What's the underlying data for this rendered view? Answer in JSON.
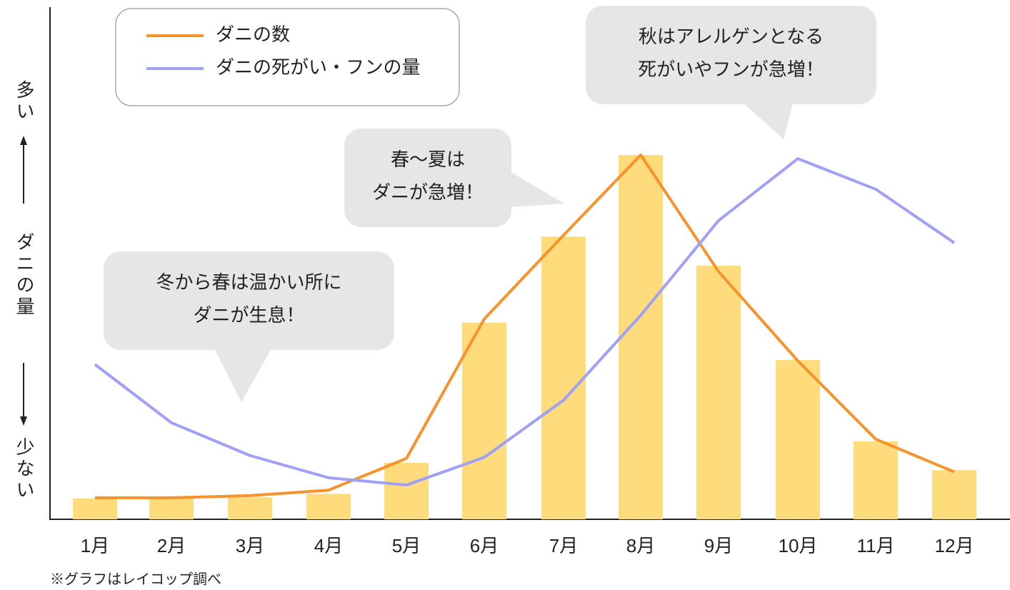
{
  "chart_data": {
    "type": "bar_line",
    "ylabel": {
      "top": "多い",
      "middle": "ダニの量",
      "bottom": "少ない"
    },
    "categories": [
      "1月",
      "2月",
      "3月",
      "4月",
      "5月",
      "6月",
      "7月",
      "8月",
      "9月",
      "10月",
      "11月",
      "12月"
    ],
    "ylim": [
      0,
      100
    ],
    "bar_color": "#fedb7b",
    "series": [
      {
        "name": "ダニの数",
        "color": "#f7932c",
        "values": [
          5.9,
          5.9,
          6.5,
          8,
          16.7,
          55,
          78,
          100,
          68,
          43.5,
          22,
          13
        ]
      },
      {
        "name": "ダニの死がい・フンの量",
        "color": "#a0a0f6",
        "values": [
          42.5,
          26.5,
          17.5,
          11.4,
          9.4,
          17,
          32.7,
          56,
          82,
          99,
          90.6,
          75.9
        ]
      }
    ],
    "bar_values": [
      5.7,
      5.7,
      6,
      7,
      15.5,
      54,
      77.6,
      100,
      69.6,
      43.7,
      21.4,
      13.5
    ],
    "annotations": [
      {
        "lines": [
          "冬から春は温かい所に",
          "ダニが生息！"
        ]
      },
      {
        "lines": [
          "春〜夏は",
          "ダニが急増！"
        ]
      },
      {
        "lines": [
          "秋はアレルゲンとなる",
          "死がいやフンが急増！"
        ]
      }
    ],
    "footnote": "※グラフはレイコップ調べ"
  }
}
